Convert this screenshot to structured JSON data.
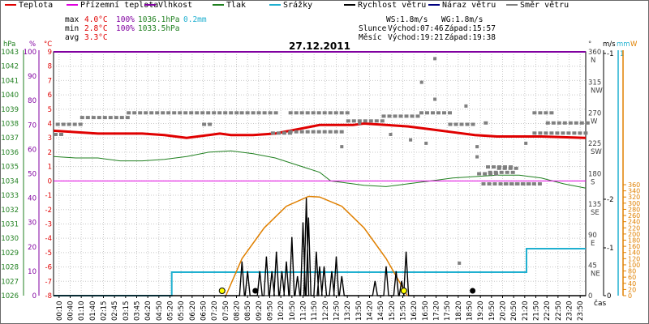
{
  "legend": [
    {
      "label": "Teplota",
      "color": "#e00000"
    },
    {
      "label": "Přízemní teplota",
      "color": "#e000e0"
    },
    {
      "label": "Vlhkost",
      "color": "#8000a0"
    },
    {
      "label": "Tlak",
      "color": "#208020"
    },
    {
      "label": "Srážky",
      "color": "#20b0d0"
    },
    {
      "label": "Rychlost větru",
      "color": "#000000"
    },
    {
      "label": "Náraz větru",
      "color": "#000080"
    },
    {
      "label": "Směr větru",
      "color": "#808080"
    }
  ],
  "stats": {
    "max": {
      "label": "max",
      "temp": "4.0°C",
      "hum": "100%",
      "press": "1036.1hPa",
      "rain": "0.2mm"
    },
    "min": {
      "label": "min",
      "temp": "2.8°C",
      "hum": "100%",
      "press": "1033.5hPa"
    },
    "avg": {
      "label": "avg",
      "temp": "3.3°C"
    }
  },
  "wind": {
    "ws": "WS:1.8m/s",
    "wg": "WG:1.8m/s"
  },
  "astro": {
    "sun_label": "Slunce",
    "sunrise": "Východ:07:46",
    "sunset": "Západ:15:57",
    "moon_label": "Měsíc",
    "moonrise": "Východ:19:21",
    "moonset": "Západ:19:38"
  },
  "chart_data": {
    "type": "line",
    "title": "27.12.2011",
    "x_label": "čas",
    "x_ticks": [
      "00:10",
      "00:40",
      "01:10",
      "01:40",
      "02:15",
      "02:45",
      "03:15",
      "03:45",
      "04:20",
      "04:50",
      "05:20",
      "05:50",
      "06:20",
      "06:50",
      "07:20",
      "07:50",
      "08:20",
      "08:50",
      "09:20",
      "09:50",
      "10:20",
      "10:50",
      "11:20",
      "11:50",
      "12:20",
      "12:50",
      "13:20",
      "13:50",
      "14:20",
      "14:50",
      "15:20",
      "15:50",
      "16:20",
      "16:50",
      "17:20",
      "17:50",
      "18:20",
      "18:50",
      "19:20",
      "19:50",
      "20:20",
      "20:50",
      "21:20",
      "21:50",
      "22:20",
      "22:50",
      "23:20",
      "23:50"
    ],
    "axes": {
      "hpa": {
        "unit": "hPa",
        "ticks": [
          "1043",
          "1042",
          "1041",
          "1040",
          "1039",
          "1038",
          "1037",
          "1036",
          "1035",
          "1034",
          "1033",
          "1032",
          "1031",
          "1030",
          "1029",
          "1028",
          "1027",
          "1026"
        ]
      },
      "humidity": {
        "unit": "%",
        "ticks": [
          "100",
          "90",
          "80",
          "70",
          "60",
          "50",
          "40",
          "30",
          "20",
          "10",
          "0"
        ]
      },
      "temperature": {
        "unit": "°C",
        "ticks": [
          "9",
          "8",
          "7",
          "6",
          "5",
          "4",
          "3",
          "2",
          "1",
          "0",
          "-1",
          "-2",
          "-3",
          "-4",
          "-5",
          "-6",
          "-7",
          "-8"
        ]
      },
      "wind_dir": {
        "unit": "°",
        "ticks": [
          "360",
          "315",
          "270",
          "225",
          "180",
          "135",
          "90",
          "45",
          "0"
        ],
        "labels": [
          "N",
          "NW",
          "W",
          "SW",
          "S",
          "SE",
          "E",
          "NE",
          ""
        ]
      },
      "wind_speed": {
        "unit": "m/s",
        "ticks": [
          "-1",
          "-2",
          "-1",
          "0"
        ]
      },
      "rain": {
        "unit": "mm",
        "ticks": [
          "1"
        ]
      },
      "solar": {
        "unit": "W",
        "ticks": [
          "360",
          "340",
          "320",
          "300",
          "280",
          "260",
          "240",
          "220",
          "200",
          "180",
          "160",
          "140",
          "120",
          "100",
          "80",
          "60",
          "40",
          "20",
          "0"
        ]
      }
    },
    "series": [
      {
        "name": "Teplota",
        "axis": "temperature",
        "color": "#e00000",
        "points": [
          [
            0,
            3.5
          ],
          [
            2,
            3.3
          ],
          [
            4,
            3.3
          ],
          [
            5,
            3.2
          ],
          [
            6,
            3.0
          ],
          [
            7,
            3.2
          ],
          [
            7.5,
            3.3
          ],
          [
            8,
            3.2
          ],
          [
            9,
            3.2
          ],
          [
            10,
            3.3
          ],
          [
            11,
            3.6
          ],
          [
            12,
            3.9
          ],
          [
            13,
            3.9
          ],
          [
            13.5,
            3.9
          ],
          [
            14,
            4.0
          ],
          [
            15,
            3.9
          ],
          [
            16,
            3.8
          ],
          [
            17,
            3.6
          ],
          [
            18,
            3.4
          ],
          [
            19,
            3.2
          ],
          [
            20,
            3.1
          ],
          [
            22,
            3.1
          ],
          [
            24,
            3.0
          ]
        ]
      },
      {
        "name": "Tlak",
        "axis": "hpa",
        "color": "#208020",
        "points": [
          [
            0,
            1035.7
          ],
          [
            1,
            1035.6
          ],
          [
            2,
            1035.6
          ],
          [
            3,
            1035.4
          ],
          [
            4,
            1035.4
          ],
          [
            5,
            1035.5
          ],
          [
            6,
            1035.7
          ],
          [
            7,
            1036.0
          ],
          [
            8,
            1036.1
          ],
          [
            9,
            1035.9
          ],
          [
            10,
            1035.6
          ],
          [
            11,
            1035.1
          ],
          [
            12,
            1034.6
          ],
          [
            12.5,
            1034.0
          ],
          [
            13,
            1033.9
          ],
          [
            14,
            1033.7
          ],
          [
            15,
            1033.6
          ],
          [
            16,
            1033.8
          ],
          [
            17,
            1034.0
          ],
          [
            18,
            1034.2
          ],
          [
            19,
            1034.3
          ],
          [
            20,
            1034.4
          ],
          [
            21,
            1034.4
          ],
          [
            22,
            1034.2
          ],
          [
            23,
            1033.8
          ],
          [
            24,
            1033.5
          ]
        ]
      },
      {
        "name": "Vlhkost",
        "axis": "humidity",
        "color": "#8000a0",
        "points": [
          [
            0,
            100
          ],
          [
            24,
            100
          ]
        ]
      },
      {
        "name": "Přízemní teplota",
        "axis": "temperature",
        "color": "#e000e0",
        "points": [
          [
            0,
            0
          ],
          [
            24,
            0
          ]
        ]
      },
      {
        "name": "Srážky",
        "axis": "rain",
        "color": "#20b0d0",
        "points": [
          [
            0,
            0
          ],
          [
            5.33,
            0
          ],
          [
            5.33,
            0.1
          ],
          [
            21.33,
            0.1
          ],
          [
            21.33,
            0.2
          ],
          [
            24,
            0.2
          ]
        ]
      },
      {
        "name": "Sluneční záření",
        "axis": "solar",
        "color": "#e08000",
        "points": [
          [
            7.77,
            0
          ],
          [
            8.5,
            120
          ],
          [
            9.5,
            220
          ],
          [
            10.5,
            290
          ],
          [
            11.5,
            322
          ],
          [
            12.0,
            320
          ],
          [
            13.0,
            290
          ],
          [
            14.0,
            220
          ],
          [
            15.0,
            120
          ],
          [
            15.95,
            0
          ]
        ]
      },
      {
        "name": "Rychlost větru",
        "axis": "wind_speed",
        "color": "#000000",
        "bursts": [
          [
            8.5,
            0.7
          ],
          [
            8.75,
            0.5
          ],
          [
            9.3,
            0.5
          ],
          [
            9.6,
            0.8
          ],
          [
            9.85,
            0.5
          ],
          [
            10.05,
            0.9
          ],
          [
            10.3,
            0.5
          ],
          [
            10.5,
            0.7
          ],
          [
            10.75,
            1.2
          ],
          [
            11.0,
            0.4
          ],
          [
            11.25,
            1.5
          ],
          [
            11.4,
            2.0
          ],
          [
            11.5,
            1.6
          ],
          [
            11.85,
            0.9
          ],
          [
            12.0,
            0.6
          ],
          [
            12.2,
            0.6
          ],
          [
            12.55,
            0.5
          ],
          [
            12.75,
            0.8
          ],
          [
            13.0,
            0.4
          ],
          [
            14.5,
            0.3
          ],
          [
            15.0,
            0.6
          ],
          [
            15.45,
            0.5
          ],
          [
            15.7,
            0.3
          ],
          [
            15.9,
            0.9
          ]
        ]
      },
      {
        "name": "Směr větru",
        "axis": "wind_dir",
        "color": "#808080",
        "segments": [
          [
            0,
            0.4,
            238
          ],
          [
            0.1,
            1.2,
            253
          ],
          [
            1.2,
            3.3,
            263
          ],
          [
            3.3,
            8.2,
            270
          ],
          [
            6.7,
            7.0,
            253
          ],
          [
            8.4,
            10.0,
            270
          ],
          [
            9.8,
            10.6,
            240
          ],
          [
            10.6,
            13.2,
            270
          ],
          [
            10.6,
            13.0,
            242
          ],
          [
            13.2,
            14.8,
            258
          ],
          [
            14.8,
            16.5,
            265
          ],
          [
            16.5,
            17.8,
            270
          ],
          [
            17.8,
            18.9,
            253
          ],
          [
            19.4,
            19.6,
            255
          ],
          [
            21.6,
            22.6,
            270
          ],
          [
            21.6,
            24.0,
            240
          ],
          [
            22.2,
            24.0,
            255
          ],
          [
            19.1,
            20.0,
            180
          ],
          [
            19.5,
            20.6,
            190
          ],
          [
            20.0,
            21.0,
            188
          ],
          [
            19.6,
            20.8,
            182
          ],
          [
            20.3,
            22.0,
            165
          ],
          [
            19.3,
            21.5,
            165
          ]
        ],
        "dots": [
          [
            13.0,
            220
          ],
          [
            15.2,
            238
          ],
          [
            16.1,
            230
          ],
          [
            16.8,
            225
          ],
          [
            18.6,
            280
          ],
          [
            16.6,
            315
          ],
          [
            17.2,
            350
          ],
          [
            17.2,
            290
          ],
          [
            19.1,
            220
          ],
          [
            21.3,
            225
          ],
          [
            13.8,
            255
          ],
          [
            19.1,
            205
          ],
          [
            18.3,
            48
          ]
        ]
      }
    ],
    "markers": {
      "sun": [
        7.6,
        15.8
      ],
      "moon": [
        9.1,
        18.9
      ]
    }
  }
}
